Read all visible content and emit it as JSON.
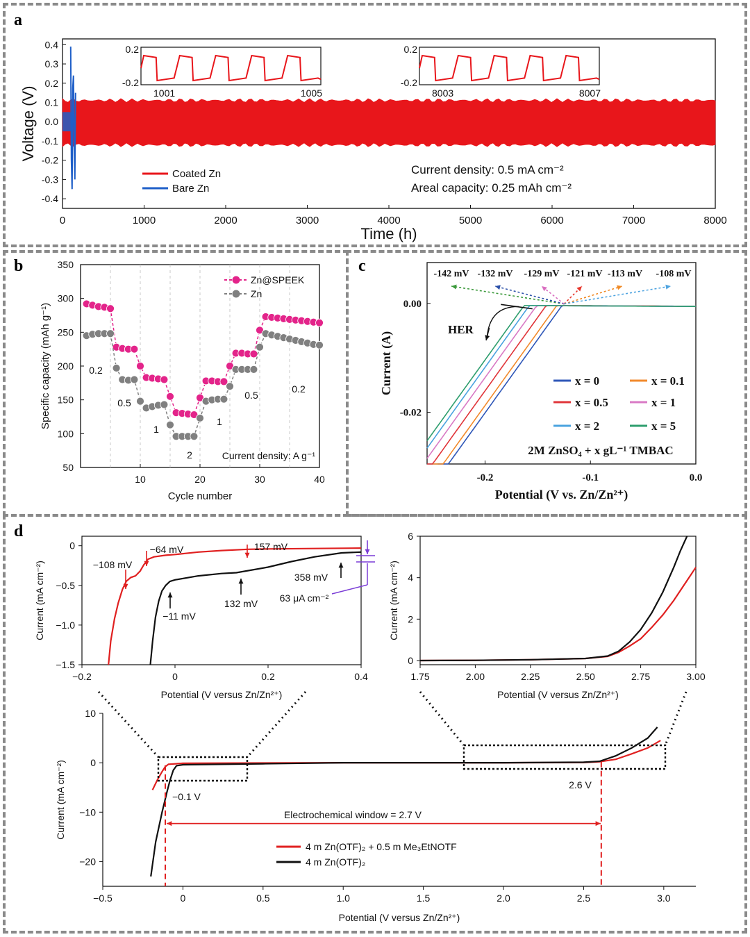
{
  "panel_labels": {
    "a": "a",
    "b": "b",
    "c": "c",
    "d": "d"
  },
  "chart_data": [
    {
      "id": "a",
      "type": "line",
      "title": "",
      "xlabel": "Time (h)",
      "ylabel": "Voltage (V)",
      "xlim": [
        0,
        8000
      ],
      "ylim": [
        -0.45,
        0.43
      ],
      "xticks": [
        0,
        1000,
        2000,
        3000,
        4000,
        5000,
        6000,
        7000,
        8000
      ],
      "yticks": [
        -0.4,
        -0.3,
        -0.2,
        -0.1,
        0.0,
        0.1,
        0.2,
        0.3,
        0.4
      ],
      "ytick_labels": [
        "-0.4",
        "-0.3",
        "-0.2",
        "-0.1",
        "0.0",
        "0.1",
        "0.2",
        "0.3",
        "0.4"
      ],
      "series": [
        {
          "name": "Coated Zn",
          "color": "#e8161b",
          "band_upper": 0.11,
          "band_lower": -0.12,
          "x_range": [
            0,
            8000
          ]
        },
        {
          "name": "Bare Zn",
          "color": "#1f5fc8",
          "band_upper": 0.05,
          "band_lower": -0.05,
          "spikes": [
            0.39,
            -0.35,
            0.24,
            -0.3
          ],
          "x_range": [
            0,
            120
          ]
        }
      ],
      "legend": [
        "Coated Zn",
        "Bare Zn"
      ],
      "annotations": [
        "Current density: 0.5 mA cm⁻²",
        "Areal capacity: 0.25 mAh cm⁻²"
      ],
      "insets": [
        {
          "xlim": [
            1001,
            1005
          ],
          "ytick_labels": [
            "0.2",
            "-0.2"
          ],
          "xtick_labels": [
            "1001",
            "1005"
          ],
          "cycles": 5
        },
        {
          "xlim": [
            8003,
            8007
          ],
          "ytick_labels": [
            "0.2",
            "-0.2"
          ],
          "xtick_labels": [
            "8003",
            "8007"
          ],
          "cycles": 5
        }
      ]
    },
    {
      "id": "b",
      "type": "scatter",
      "xlabel": "Cycle number",
      "ylabel": "Specific capacity (mAh g⁻¹)",
      "xlim": [
        0,
        40
      ],
      "ylim": [
        50,
        350
      ],
      "xticks": [
        10,
        20,
        30,
        40
      ],
      "yticks": [
        50,
        100,
        150,
        200,
        250,
        300,
        350
      ],
      "series": [
        {
          "name": "Zn@SPEEK",
          "color": "#e3248a",
          "x": [
            1,
            2,
            3,
            4,
            5,
            6,
            7,
            8,
            9,
            10,
            11,
            12,
            13,
            14,
            15,
            16,
            17,
            18,
            19,
            20,
            21,
            22,
            23,
            24,
            25,
            26,
            27,
            28,
            29,
            30,
            31,
            32,
            33,
            34,
            35,
            36,
            37,
            38,
            39,
            40
          ],
          "y": [
            292,
            290,
            288,
            287,
            285,
            228,
            226,
            225,
            225,
            200,
            183,
            182,
            181,
            180,
            155,
            131,
            130,
            129,
            128,
            153,
            178,
            178,
            177,
            177,
            200,
            219,
            219,
            218,
            218,
            253,
            273,
            272,
            271,
            270,
            269,
            268,
            267,
            266,
            265,
            264
          ]
        },
        {
          "name": "Zn",
          "color": "#808080",
          "x": [
            1,
            2,
            3,
            4,
            5,
            6,
            7,
            8,
            9,
            10,
            11,
            12,
            13,
            14,
            15,
            16,
            17,
            18,
            19,
            20,
            21,
            22,
            23,
            24,
            25,
            26,
            27,
            28,
            29,
            30,
            31,
            32,
            33,
            34,
            35,
            36,
            37,
            38,
            39,
            40
          ],
          "y": [
            245,
            247,
            248,
            248,
            248,
            197,
            180,
            179,
            180,
            148,
            138,
            140,
            142,
            143,
            113,
            96,
            96,
            96,
            96,
            123,
            148,
            150,
            151,
            151,
            170,
            195,
            195,
            195,
            195,
            228,
            248,
            246,
            244,
            242,
            240,
            238,
            236,
            234,
            232,
            231
          ]
        }
      ],
      "rate_labels": [
        "0.2",
        "0.5",
        "1",
        "2",
        "1",
        "0.5",
        "0.2"
      ],
      "legend": [
        "Zn@SPEEK",
        "Zn"
      ],
      "annotation": "Current density: A g⁻¹"
    },
    {
      "id": "c",
      "type": "line",
      "xlabel": "Potential (V vs. Zn/Zn²⁺)",
      "ylabel": "Current (A)",
      "xlim": [
        -0.255,
        0.0
      ],
      "ylim": [
        -0.0295,
        0.0075
      ],
      "xticks": [
        -0.2,
        -0.1,
        0.0
      ],
      "xtick_labels": [
        "-0.2",
        "-0.1",
        "0.0"
      ],
      "yticks": [
        0.0,
        -0.02
      ],
      "ytick_labels": [
        "0.00",
        "-0.02"
      ],
      "series": [
        {
          "name": "x = 0",
          "color": "#2f57b8",
          "onset": -0.127
        },
        {
          "name": "x = 0.1",
          "color": "#f28a2c",
          "onset": -0.132
        },
        {
          "name": "x = 0.5",
          "color": "#e0353a",
          "onset": -0.142
        },
        {
          "name": "x = 1",
          "color": "#d97ac5",
          "onset": -0.151
        },
        {
          "name": "x = 2",
          "color": "#4aa3df",
          "onset": -0.158
        },
        {
          "name": "x = 5",
          "color": "#2e9e6e",
          "onset": -0.163
        }
      ],
      "onset_labels": [
        "-142 mV",
        "-132 mV",
        "-129 mV",
        "-121 mV",
        "-113 mV",
        "-108 mV"
      ],
      "onset_colors": [
        "#3c9a3c",
        "#2a4fa8",
        "#d96fc0",
        "#e8352b",
        "#f08a25",
        "#4fa4e0"
      ],
      "her_label": "HER",
      "annotation": "2M ZnSO₄ + x gL⁻¹ TMBAC"
    },
    {
      "id": "d_inset_left",
      "type": "line",
      "xlabel": "Potential (V versus Zn/Zn²⁺)",
      "ylabel": "Current (mA cm⁻²)",
      "xlim": [
        -0.2,
        0.4
      ],
      "ylim": [
        -1.5,
        0.1
      ],
      "xticks": [
        -0.2,
        0.0,
        0.2,
        0.4
      ],
      "xtick_labels": [
        "−0.2",
        "0",
        "0.2",
        "0.4"
      ],
      "yticks": [
        0,
        -0.5,
        -1.0,
        -1.5
      ],
      "ytick_labels": [
        "0",
        "−0.5",
        "−1.0",
        "−1.5"
      ],
      "series": [
        {
          "name": "4 m Zn(OTF)₂ + 0.5 m Me₃EtNOTF",
          "color": "#e02020",
          "x": [
            -0.143,
            -0.138,
            -0.13,
            -0.122,
            -0.113,
            -0.105,
            -0.095,
            -0.085,
            -0.075,
            -0.067,
            -0.058,
            -0.045,
            -0.02,
            0.0,
            0.05,
            0.1,
            0.157,
            0.2,
            0.3,
            0.4
          ],
          "y": [
            -1.5,
            -1.2,
            -0.92,
            -0.72,
            -0.55,
            -0.45,
            -0.4,
            -0.38,
            -0.32,
            -0.24,
            -0.17,
            -0.14,
            -0.12,
            -0.11,
            -0.08,
            -0.06,
            -0.045,
            -0.04,
            -0.035,
            -0.03
          ]
        },
        {
          "name": "4 m Zn(OTF)₂",
          "color": "#111111",
          "x": [
            -0.053,
            -0.048,
            -0.042,
            -0.035,
            -0.028,
            -0.02,
            -0.011,
            0.0,
            0.05,
            0.1,
            0.132,
            0.2,
            0.25,
            0.3,
            0.358,
            0.4
          ],
          "y": [
            -1.5,
            -1.2,
            -0.9,
            -0.7,
            -0.57,
            -0.5,
            -0.45,
            -0.43,
            -0.38,
            -0.35,
            -0.34,
            -0.27,
            -0.2,
            -0.14,
            -0.09,
            -0.08
          ]
        }
      ],
      "annotations": [
        "−108 mV",
        "−64 mV",
        "157 mV",
        "−11 mV",
        "132 mV",
        "358 mV",
        "63 μA cm⁻²"
      ]
    },
    {
      "id": "d_inset_right",
      "type": "line",
      "xlabel": "Potential (V versus Zn/Zn²⁺)",
      "ylabel": "Current (mA cm⁻²)",
      "xlim": [
        1.75,
        3.0
      ],
      "ylim": [
        -0.2,
        6
      ],
      "xticks": [
        1.75,
        2.0,
        2.25,
        2.5,
        2.75,
        3.0
      ],
      "xtick_labels": [
        "1.75",
        "2.00",
        "2.25",
        "2.50",
        "2.75",
        "3.00"
      ],
      "yticks": [
        0,
        2,
        4,
        6
      ],
      "ytick_labels": [
        "0",
        "2",
        "4",
        "6"
      ],
      "series": [
        {
          "name": "4 m Zn(OTF)₂ + 0.5 m Me₃EtNOTF",
          "color": "#e02020",
          "x": [
            1.75,
            2.0,
            2.25,
            2.5,
            2.6,
            2.65,
            2.7,
            2.75,
            2.8,
            2.85,
            2.9,
            2.95,
            3.0
          ],
          "y": [
            0.0,
            0.01,
            0.04,
            0.1,
            0.2,
            0.4,
            0.7,
            1.05,
            1.6,
            2.2,
            2.9,
            3.7,
            4.5
          ]
        },
        {
          "name": "4 m Zn(OTF)₂",
          "color": "#111111",
          "x": [
            1.75,
            2.0,
            2.25,
            2.5,
            2.6,
            2.65,
            2.7,
            2.75,
            2.8,
            2.85,
            2.9,
            2.93,
            2.96
          ],
          "y": [
            0.0,
            0.01,
            0.04,
            0.1,
            0.22,
            0.45,
            0.9,
            1.5,
            2.3,
            3.3,
            4.5,
            5.3,
            6.0
          ]
        }
      ]
    },
    {
      "id": "d_main",
      "type": "line",
      "xlabel": "Potential (V versus Zn/Zn²⁺)",
      "ylabel": "Current (mA cm⁻²)",
      "xlim": [
        -0.5,
        3.2
      ],
      "ylim": [
        -25,
        10
      ],
      "xticks": [
        -0.5,
        0,
        0.5,
        1.0,
        1.5,
        2.0,
        2.5,
        3.0
      ],
      "xtick_labels": [
        "−0.5",
        "0",
        "0.5",
        "1.0",
        "1.5",
        "2.0",
        "2.5",
        "3.0"
      ],
      "yticks": [
        10,
        0,
        -10,
        -20
      ],
      "ytick_labels": [
        "10",
        "0",
        "−10",
        "−20"
      ],
      "series": [
        {
          "name": "4 m Zn(OTF)₂ + 0.5 m Me₃EtNOTF",
          "color": "#e02020",
          "x": [
            -0.19,
            -0.16,
            -0.13,
            -0.11,
            -0.09,
            0.0,
            0.5,
            1.0,
            1.5,
            2.0,
            2.5,
            2.6,
            2.7,
            2.8,
            2.9,
            2.98
          ],
          "y": [
            -5.5,
            -3.5,
            -1.8,
            -0.8,
            -0.3,
            -0.1,
            -0.05,
            0.0,
            0.0,
            0.0,
            0.05,
            0.2,
            0.7,
            1.8,
            3.0,
            4.5
          ]
        },
        {
          "name": "4 m Zn(OTF)₂",
          "color": "#111111",
          "x": [
            -0.2,
            -0.17,
            -0.13,
            -0.1,
            -0.08,
            -0.06,
            -0.04,
            0.0,
            0.5,
            1.0,
            1.5,
            2.0,
            2.5,
            2.6,
            2.7,
            2.8,
            2.9,
            2.96
          ],
          "y": [
            -23,
            -16,
            -10,
            -6,
            -3.5,
            -1.5,
            -0.6,
            -0.4,
            -0.2,
            0.0,
            0.0,
            0.0,
            0.1,
            0.3,
            1.4,
            3.0,
            5.0,
            7.2
          ]
        }
      ],
      "markers": [
        "−0.1 V",
        "2.6 V"
      ],
      "window_label": "Electrochemical window = 2.7 V",
      "legend": [
        "4 m Zn(OTF)₂ + 0.5 m Me₃EtNOTF",
        "4 m Zn(OTF)₂"
      ]
    }
  ]
}
